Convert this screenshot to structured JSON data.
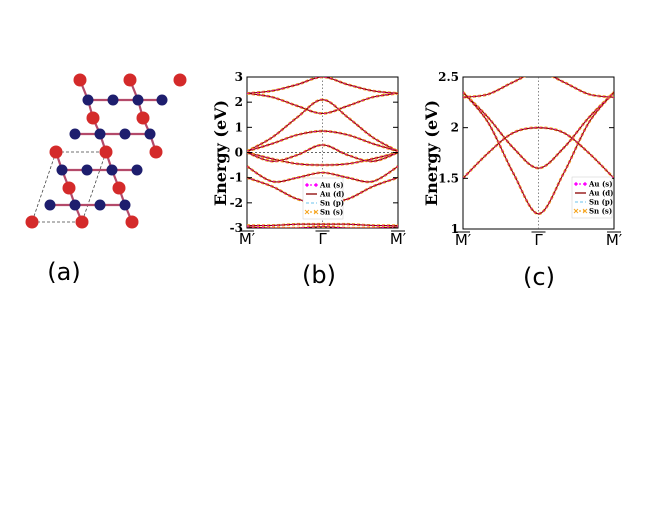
{
  "figure": {
    "panels": [
      {
        "id": "a",
        "label": "(a)"
      },
      {
        "id": "b",
        "label": "(b)"
      },
      {
        "id": "c",
        "label": "(c)"
      }
    ]
  },
  "colors": {
    "au_atom": "#d42a2a",
    "sn_atom": "#1e1e6e",
    "bond": "#b44a6a",
    "au_s": "#ff00ff",
    "au_d": "#8b0000",
    "sn_p": "#89cff0",
    "sn_s": "#f5a623",
    "green_band": "#5cb85c"
  },
  "chart_data": [
    {
      "type": "line",
      "panel": "b",
      "ylabel": "Energy (eV)",
      "xlabel": "",
      "ylim": [
        -3,
        3
      ],
      "yticks": [
        -3,
        -2,
        -1,
        0,
        1,
        2,
        3
      ],
      "xticks": [
        "M′",
        "Γ",
        "M′"
      ],
      "fermi_level": 0,
      "legend": {
        "placement": "center",
        "entries": [
          "Au (s)",
          "Au (d)",
          "Sn (p)",
          "Sn (s)"
        ]
      },
      "series": [
        {
          "values": [
            2.35,
            2.2,
            1.85,
            1.55,
            1.85,
            2.2,
            2.35
          ]
        },
        {
          "values": [
            2.35,
            2.45,
            2.7,
            3.0,
            2.7,
            2.45,
            2.35
          ]
        },
        {
          "values": [
            0.05,
            0.6,
            1.4,
            2.1,
            1.4,
            0.6,
            0.05
          ]
        },
        {
          "values": [
            0.05,
            0.35,
            0.7,
            0.85,
            0.7,
            0.35,
            0.05
          ]
        },
        {
          "values": [
            0.0,
            -0.25,
            -0.45,
            -0.5,
            -0.45,
            -0.25,
            0.0
          ]
        },
        {
          "values": [
            0.0,
            -0.35,
            -0.1,
            0.3,
            -0.1,
            -0.35,
            0.0
          ]
        },
        {
          "values": [
            -0.55,
            -1.15,
            -1.0,
            -0.8,
            -1.0,
            -1.15,
            -0.55
          ]
        },
        {
          "values": [
            -1.0,
            -1.35,
            -1.85,
            -2.0,
            -1.85,
            -1.35,
            -1.0
          ]
        },
        {
          "values": [
            -2.9,
            -2.9,
            -2.85,
            -2.85,
            -2.85,
            -2.9,
            -2.9
          ]
        },
        {
          "values": [
            -2.95,
            -3.0,
            -3.0,
            -2.95,
            -3.0,
            -3.0,
            -2.95
          ]
        }
      ]
    },
    {
      "type": "line",
      "panel": "c",
      "ylabel": "Energy (eV)",
      "xlabel": "",
      "ylim": [
        1,
        2.5
      ],
      "yticks": [
        1,
        1.5,
        2,
        2.5
      ],
      "xticks": [
        "M′",
        "Γ",
        "M′"
      ],
      "legend": {
        "placement": "right",
        "entries": [
          "Au (s)",
          "Au (d)",
          "Sn (p)",
          "Sn (s)"
        ]
      },
      "series": [
        {
          "values": [
            2.35,
            2.1,
            1.8,
            1.6,
            1.8,
            2.1,
            2.35
          ]
        },
        {
          "values": [
            2.35,
            2.05,
            1.55,
            1.15,
            1.55,
            2.05,
            2.35
          ]
        },
        {
          "values": [
            1.5,
            1.75,
            1.95,
            2.0,
            1.95,
            1.75,
            1.5
          ]
        },
        {
          "values": [
            2.3,
            2.33,
            2.45,
            2.55,
            2.45,
            2.33,
            2.3
          ]
        }
      ]
    }
  ]
}
